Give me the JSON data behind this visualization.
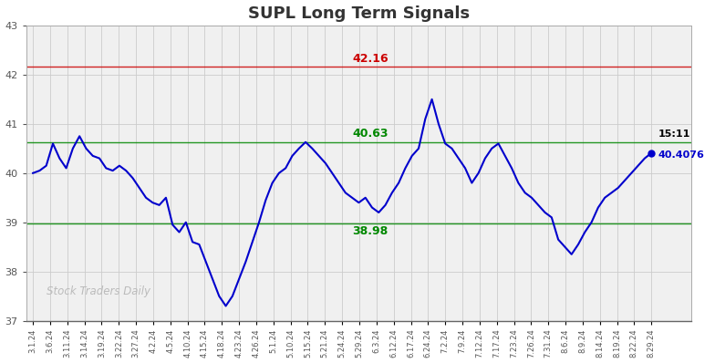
{
  "title": "SUPL Long Term Signals",
  "title_color": "#333333",
  "background_color": "#ffffff",
  "plot_bg_color": "#f0f0f0",
  "grid_color": "#cccccc",
  "line_color": "#0000cc",
  "line_width": 1.5,
  "red_line": 42.16,
  "green_line_upper": 40.63,
  "green_line_lower": 38.98,
  "red_line_color": "#cc0000",
  "green_line_color": "#008800",
  "ylim": [
    37,
    43
  ],
  "yticks": [
    37,
    38,
    39,
    40,
    41,
    42,
    43
  ],
  "watermark": "Stock Traders Daily",
  "watermark_color": "#bbbbbb",
  "end_time": "15:11",
  "end_price": "40.4076",
  "end_annotation_color_time": "#000000",
  "end_annotation_color_price": "#0000cc",
  "xtick_labels": [
    "3.1.24",
    "3.6.24",
    "3.11.24",
    "3.14.24",
    "3.19.24",
    "3.22.24",
    "3.27.24",
    "4.2.24",
    "4.5.24",
    "4.10.24",
    "4.15.24",
    "4.18.24",
    "4.23.24",
    "4.26.24",
    "5.1.24",
    "5.10.24",
    "5.15.24",
    "5.21.24",
    "5.24.24",
    "5.29.24",
    "6.3.24",
    "6.12.24",
    "6.17.24",
    "6.24.24",
    "7.2.24",
    "7.9.24",
    "7.12.24",
    "7.17.24",
    "7.23.24",
    "7.26.24",
    "7.31.24",
    "8.6.24",
    "8.9.24",
    "8.14.24",
    "8.19.24",
    "8.22.24",
    "8.29.24"
  ],
  "prices": [
    40.0,
    40.05,
    40.15,
    40.6,
    40.3,
    40.1,
    40.5,
    40.75,
    40.5,
    40.35,
    40.3,
    40.1,
    40.05,
    40.15,
    40.05,
    39.9,
    39.7,
    39.5,
    39.4,
    39.35,
    39.5,
    38.95,
    38.8,
    39.0,
    38.6,
    38.55,
    38.2,
    37.85,
    37.5,
    37.3,
    37.5,
    37.85,
    38.2,
    38.6,
    39.0,
    39.45,
    39.8,
    40.0,
    40.1,
    40.35,
    40.5,
    40.63,
    40.5,
    40.35,
    40.2,
    40.0,
    39.8,
    39.6,
    39.5,
    39.4,
    39.5,
    39.3,
    39.2,
    39.35,
    39.6,
    39.8,
    40.1,
    40.35,
    40.5,
    41.1,
    41.5,
    41.0,
    40.6,
    40.5,
    40.3,
    40.1,
    39.8,
    40.0,
    40.3,
    40.5,
    40.6,
    40.35,
    40.1,
    39.8,
    39.6,
    39.5,
    39.35,
    39.2,
    39.1,
    38.65,
    38.5,
    38.35,
    38.55,
    38.8,
    39.0,
    39.3,
    39.5,
    39.6,
    39.7,
    39.85,
    40.0,
    40.15,
    40.3,
    40.4076
  ]
}
